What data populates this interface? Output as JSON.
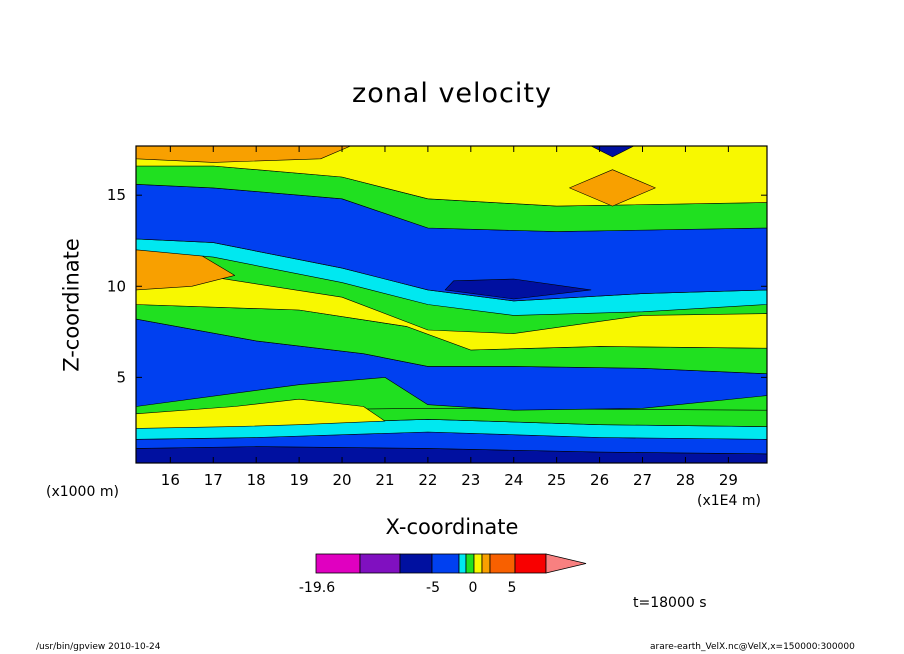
{
  "chart_data": {
    "type": "heatmap",
    "title": "zonal velocity",
    "xlabel": "X-coordinate",
    "ylabel": "Z-coordinate",
    "x_unit_left": "(x1000 m)",
    "x_unit_right": "(x1E4 m)",
    "xlim": [
      15.2,
      29.9
    ],
    "ylim": [
      0.3,
      17.7
    ],
    "x_ticks": [
      16,
      17,
      18,
      19,
      20,
      21,
      22,
      23,
      24,
      25,
      26,
      27,
      28,
      29
    ],
    "y_ticks": [
      5,
      10,
      15
    ],
    "bands": [
      {
        "name": "bottom-dark-blue",
        "color": "#0010a0",
        "pts": [
          [
            15.2,
            0.3
          ],
          [
            29.9,
            0.3
          ],
          [
            29.9,
            0.8
          ],
          [
            26,
            0.9
          ],
          [
            22,
            1.1
          ],
          [
            18,
            1.2
          ],
          [
            15.2,
            1.1
          ]
        ]
      },
      {
        "name": "lower-blue",
        "color": "#0040f0",
        "pts": [
          [
            15.2,
            1.1
          ],
          [
            18,
            1.2
          ],
          [
            22,
            1.1
          ],
          [
            26,
            0.9
          ],
          [
            29.9,
            0.8
          ],
          [
            29.9,
            1.6
          ],
          [
            26,
            1.7
          ],
          [
            22,
            2
          ],
          [
            18,
            1.7
          ],
          [
            15.2,
            1.6
          ]
        ]
      },
      {
        "name": "lower-cyan",
        "color": "#00e8f0",
        "pts": [
          [
            15.2,
            1.6
          ],
          [
            18,
            1.7
          ],
          [
            22,
            2
          ],
          [
            26,
            1.7
          ],
          [
            29.9,
            1.6
          ],
          [
            29.9,
            2.3
          ],
          [
            26,
            2.4
          ],
          [
            22,
            2.7
          ],
          [
            18,
            2.4
          ],
          [
            15.2,
            2.3
          ]
        ]
      },
      {
        "name": "lower-green",
        "color": "#20e020",
        "pts": [
          [
            15.2,
            2.3
          ],
          [
            18,
            2.4
          ],
          [
            22,
            2.7
          ],
          [
            26,
            2.4
          ],
          [
            29.9,
            2.3
          ],
          [
            29.9,
            3.2
          ],
          [
            22,
            3.3
          ],
          [
            18,
            3.2
          ],
          [
            15.2,
            3
          ]
        ]
      },
      {
        "name": "lower-yellow",
        "color": "#f8f800",
        "pts": [
          [
            15.2,
            3
          ],
          [
            17.5,
            3.4
          ],
          [
            19,
            3.8
          ],
          [
            20.5,
            3.4
          ],
          [
            21,
            2.6
          ],
          [
            19,
            2.4
          ],
          [
            17.5,
            2.3
          ],
          [
            15.2,
            2.2
          ]
        ]
      },
      {
        "name": "mid-blue",
        "color": "#0040f0",
        "pts": [
          [
            15.2,
            3.4
          ],
          [
            19,
            4.6
          ],
          [
            21,
            5
          ],
          [
            22,
            3.5
          ],
          [
            24,
            3.2
          ],
          [
            27,
            3.3
          ],
          [
            29.9,
            4
          ],
          [
            29.9,
            5.2
          ],
          [
            27,
            5.5
          ],
          [
            24,
            5.6
          ],
          [
            22,
            5.6
          ],
          [
            20.5,
            6.3
          ],
          [
            18,
            7
          ],
          [
            15.2,
            8.2
          ]
        ]
      },
      {
        "name": "mid-green",
        "color": "#20e020",
        "pts": [
          [
            15.2,
            8.2
          ],
          [
            18,
            7
          ],
          [
            20.5,
            6.3
          ],
          [
            22,
            5.6
          ],
          [
            24,
            5.6
          ],
          [
            27,
            5.5
          ],
          [
            29.9,
            5.2
          ],
          [
            29.9,
            6.6
          ],
          [
            26,
            6.7
          ],
          [
            23,
            6.5
          ],
          [
            21.5,
            7.8
          ],
          [
            19,
            8.7
          ],
          [
            15.2,
            9
          ]
        ]
      },
      {
        "name": "upper-yellow",
        "color": "#f8f800",
        "pts": [
          [
            15.2,
            9
          ],
          [
            19,
            8.7
          ],
          [
            21.5,
            7.8
          ],
          [
            23,
            6.5
          ],
          [
            26,
            6.7
          ],
          [
            29.9,
            6.6
          ],
          [
            29.9,
            8.5
          ],
          [
            27,
            8.4
          ],
          [
            24,
            7.4
          ],
          [
            22,
            7.6
          ],
          [
            20,
            9.4
          ],
          [
            17,
            10.5
          ],
          [
            15.2,
            11
          ]
        ]
      },
      {
        "name": "upper-orange",
        "color": "#f8a000",
        "pts": [
          [
            15.2,
            9.8
          ],
          [
            16.5,
            10
          ],
          [
            17.5,
            10.6
          ],
          [
            16.5,
            12
          ],
          [
            15.2,
            12
          ]
        ]
      },
      {
        "name": "upper-cyan",
        "color": "#00e8f0",
        "pts": [
          [
            15.2,
            12
          ],
          [
            17,
            11.6
          ],
          [
            20,
            10.2
          ],
          [
            22,
            9
          ],
          [
            24,
            8.4
          ],
          [
            27,
            8.6
          ],
          [
            29.9,
            9
          ],
          [
            29.9,
            9.8
          ],
          [
            27,
            9.6
          ],
          [
            24,
            9.2
          ],
          [
            22,
            9.8
          ],
          [
            20,
            11
          ],
          [
            17,
            12.4
          ],
          [
            15.2,
            12.6
          ]
        ]
      },
      {
        "name": "upper-blue",
        "color": "#0040f0",
        "pts": [
          [
            15.2,
            12.6
          ],
          [
            17,
            12.4
          ],
          [
            20,
            11
          ],
          [
            22,
            9.8
          ],
          [
            24,
            9.2
          ],
          [
            27,
            9.6
          ],
          [
            29.9,
            9.8
          ],
          [
            29.9,
            13.2
          ],
          [
            25,
            13
          ],
          [
            22,
            13.2
          ],
          [
            20,
            14.8
          ],
          [
            17,
            15.4
          ],
          [
            15.2,
            15.6
          ]
        ]
      },
      {
        "name": "upper-dark-blue",
        "color": "#0010a0",
        "pts": [
          [
            22.4,
            9.8
          ],
          [
            24,
            9.3
          ],
          [
            25.8,
            9.8
          ],
          [
            24,
            10.4
          ],
          [
            22.6,
            10.3
          ]
        ]
      },
      {
        "name": "top-green",
        "color": "#20e020",
        "pts": [
          [
            15.2,
            15.6
          ],
          [
            17,
            15.4
          ],
          [
            20,
            14.8
          ],
          [
            22,
            13.2
          ],
          [
            25,
            13
          ],
          [
            29.9,
            13.2
          ],
          [
            29.9,
            14.6
          ],
          [
            25,
            14.4
          ],
          [
            22,
            14.8
          ],
          [
            20,
            16
          ],
          [
            17,
            16.6
          ],
          [
            15.2,
            16.6
          ]
        ]
      },
      {
        "name": "top-yellow",
        "color": "#f8f800",
        "pts": [
          [
            15.2,
            16.6
          ],
          [
            17,
            16.6
          ],
          [
            20,
            16
          ],
          [
            22,
            14.8
          ],
          [
            25,
            14.4
          ],
          [
            29.9,
            14.6
          ],
          [
            29.9,
            17.7
          ],
          [
            15.2,
            17.7
          ]
        ]
      },
      {
        "name": "top-orange",
        "color": "#f8a000",
        "pts": [
          [
            15.2,
            17.7
          ],
          [
            20.2,
            17.7
          ],
          [
            19.5,
            17
          ],
          [
            17,
            16.8
          ],
          [
            15.2,
            17
          ]
        ]
      },
      {
        "name": "top-right-orange",
        "color": "#f8a000",
        "pts": [
          [
            25.3,
            15.4
          ],
          [
            26.3,
            14.4
          ],
          [
            27.3,
            15.4
          ],
          [
            26.3,
            16.4
          ]
        ]
      },
      {
        "name": "top-dark-blue",
        "color": "#0010a0",
        "pts": [
          [
            25.8,
            17.7
          ],
          [
            26.8,
            17.7
          ],
          [
            26.3,
            17.1
          ]
        ]
      }
    ],
    "colorbar": {
      "colors": [
        "#e000c0",
        "#8010c0",
        "#0010a0",
        "#0040f0",
        "#00e8f0",
        "#20e020",
        "#f8f800",
        "#f8a000",
        "#f86000",
        "#f80000",
        "#f88080"
      ],
      "labels": [
        "-19.6",
        "-5",
        "0",
        "5"
      ]
    }
  },
  "time_label": "t=18000 s",
  "footer_left": "/usr/bin/gpview   2010-10-24",
  "footer_right": "arare-earth_VelX.nc@VelX,x=150000:300000"
}
